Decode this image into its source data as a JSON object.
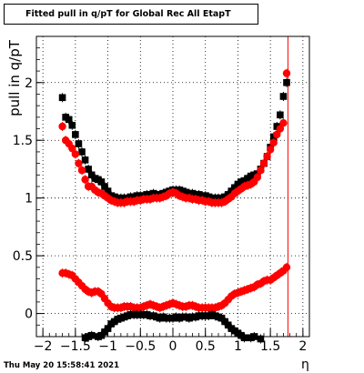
{
  "chart_data": {
    "type": "scatter",
    "title": "Fitted pull in q/pT for Global Rec All EtapT",
    "xlabel": "η",
    "ylabel": "pull in q/pT",
    "xlim": [
      -2.1,
      2.1
    ],
    "ylim": [
      -0.2,
      2.4
    ],
    "xticks": [
      -2,
      -1.5,
      -1,
      -0.5,
      0,
      0.5,
      1,
      1.5,
      2
    ],
    "xtick_labels": [
      "−2",
      "−1.5",
      "−1",
      "−0.5",
      "0",
      "0.5",
      "1",
      "1.5",
      "2"
    ],
    "yticks": [
      0,
      0.5,
      1,
      1.5,
      2
    ],
    "ytick_labels": [
      "0",
      "0.5",
      "1",
      "1.5",
      "2"
    ],
    "grid": true,
    "vertical_line_x": 1.77,
    "series": [
      {
        "color": "#000000",
        "marker": "square",
        "kind": "sigma",
        "points": [
          [
            -1.7,
            1.87
          ],
          [
            -1.65,
            1.7
          ],
          [
            -1.6,
            1.68
          ],
          [
            -1.55,
            1.63
          ],
          [
            -1.5,
            1.55
          ],
          [
            -1.45,
            1.47
          ],
          [
            -1.4,
            1.4
          ],
          [
            -1.35,
            1.33
          ],
          [
            -1.3,
            1.25
          ],
          [
            -1.25,
            1.2
          ],
          [
            -1.2,
            1.17
          ],
          [
            -1.15,
            1.16
          ],
          [
            -1.1,
            1.14
          ],
          [
            -1.05,
            1.1
          ],
          [
            -1.0,
            1.06
          ],
          [
            -0.95,
            1.02
          ],
          [
            -0.9,
            1.01
          ],
          [
            -0.85,
            1.0
          ],
          [
            -0.8,
            1.0
          ],
          [
            -0.75,
            1.0
          ],
          [
            -0.7,
            1.0
          ],
          [
            -0.65,
            1.01
          ],
          [
            -0.6,
            1.01
          ],
          [
            -0.55,
            1.02
          ],
          [
            -0.5,
            1.02
          ],
          [
            -0.45,
            1.02
          ],
          [
            -0.4,
            1.03
          ],
          [
            -0.35,
            1.03
          ],
          [
            -0.3,
            1.04
          ],
          [
            -0.25,
            1.03
          ],
          [
            -0.2,
            1.03
          ],
          [
            -0.15,
            1.04
          ],
          [
            -0.1,
            1.05
          ],
          [
            -0.05,
            1.06
          ],
          [
            0.0,
            1.07
          ],
          [
            0.05,
            1.07
          ],
          [
            0.1,
            1.07
          ],
          [
            0.15,
            1.06
          ],
          [
            0.2,
            1.05
          ],
          [
            0.25,
            1.04
          ],
          [
            0.3,
            1.04
          ],
          [
            0.35,
            1.03
          ],
          [
            0.4,
            1.03
          ],
          [
            0.45,
            1.02
          ],
          [
            0.5,
            1.02
          ],
          [
            0.55,
            1.01
          ],
          [
            0.6,
            1.0
          ],
          [
            0.65,
            1.0
          ],
          [
            0.7,
            1.0
          ],
          [
            0.75,
            1.0
          ],
          [
            0.8,
            1.01
          ],
          [
            0.85,
            1.03
          ],
          [
            0.9,
            1.06
          ],
          [
            0.95,
            1.09
          ],
          [
            1.0,
            1.12
          ],
          [
            1.05,
            1.14
          ],
          [
            1.1,
            1.15
          ],
          [
            1.15,
            1.17
          ],
          [
            1.2,
            1.19
          ],
          [
            1.25,
            1.2
          ],
          [
            1.3,
            1.21
          ],
          [
            1.35,
            1.25
          ],
          [
            1.4,
            1.3
          ],
          [
            1.45,
            1.36
          ],
          [
            1.5,
            1.44
          ],
          [
            1.55,
            1.53
          ],
          [
            1.6,
            1.62
          ],
          [
            1.65,
            1.72
          ],
          [
            1.7,
            1.88
          ],
          [
            1.75,
            2.0
          ]
        ]
      },
      {
        "color": "#ff0000",
        "marker": "circle",
        "kind": "sigma",
        "points": [
          [
            -1.7,
            1.62
          ],
          [
            -1.65,
            1.5
          ],
          [
            -1.6,
            1.47
          ],
          [
            -1.55,
            1.43
          ],
          [
            -1.5,
            1.38
          ],
          [
            -1.45,
            1.3
          ],
          [
            -1.4,
            1.24
          ],
          [
            -1.35,
            1.16
          ],
          [
            -1.3,
            1.1
          ],
          [
            -1.25,
            1.1
          ],
          [
            -1.2,
            1.07
          ],
          [
            -1.15,
            1.05
          ],
          [
            -1.1,
            1.04
          ],
          [
            -1.05,
            1.02
          ],
          [
            -1.0,
            1.0
          ],
          [
            -0.95,
            0.98
          ],
          [
            -0.9,
            0.97
          ],
          [
            -0.85,
            0.96
          ],
          [
            -0.8,
            0.96
          ],
          [
            -0.75,
            0.96
          ],
          [
            -0.7,
            0.97
          ],
          [
            -0.65,
            0.97
          ],
          [
            -0.6,
            0.97
          ],
          [
            -0.55,
            0.98
          ],
          [
            -0.5,
            0.98
          ],
          [
            -0.45,
            0.99
          ],
          [
            -0.4,
            0.99
          ],
          [
            -0.35,
            0.99
          ],
          [
            -0.3,
            1.0
          ],
          [
            -0.25,
            1.0
          ],
          [
            -0.2,
            1.0
          ],
          [
            -0.15,
            1.01
          ],
          [
            -0.1,
            1.02
          ],
          [
            -0.05,
            1.04
          ],
          [
            0.0,
            1.05
          ],
          [
            0.05,
            1.04
          ],
          [
            0.1,
            1.02
          ],
          [
            0.15,
            1.01
          ],
          [
            0.2,
            1.0
          ],
          [
            0.25,
            1.0
          ],
          [
            0.3,
            0.99
          ],
          [
            0.35,
            0.99
          ],
          [
            0.4,
            0.98
          ],
          [
            0.45,
            0.98
          ],
          [
            0.5,
            0.97
          ],
          [
            0.55,
            0.97
          ],
          [
            0.6,
            0.96
          ],
          [
            0.65,
            0.96
          ],
          [
            0.7,
            0.96
          ],
          [
            0.75,
            0.96
          ],
          [
            0.8,
            0.97
          ],
          [
            0.85,
            0.99
          ],
          [
            0.9,
            1.01
          ],
          [
            0.95,
            1.04
          ],
          [
            1.0,
            1.06
          ],
          [
            1.05,
            1.08
          ],
          [
            1.1,
            1.1
          ],
          [
            1.15,
            1.11
          ],
          [
            1.2,
            1.12
          ],
          [
            1.25,
            1.14
          ],
          [
            1.3,
            1.18
          ],
          [
            1.35,
            1.24
          ],
          [
            1.4,
            1.3
          ],
          [
            1.45,
            1.36
          ],
          [
            1.5,
            1.42
          ],
          [
            1.55,
            1.48
          ],
          [
            1.6,
            1.55
          ],
          [
            1.65,
            1.6
          ],
          [
            1.7,
            1.65
          ],
          [
            1.75,
            2.08
          ]
        ]
      },
      {
        "color": "#ff0000",
        "marker": "circle",
        "kind": "mean",
        "points": [
          [
            -1.7,
            0.35
          ],
          [
            -1.65,
            0.35
          ],
          [
            -1.6,
            0.34
          ],
          [
            -1.55,
            0.33
          ],
          [
            -1.5,
            0.3
          ],
          [
            -1.45,
            0.27
          ],
          [
            -1.4,
            0.24
          ],
          [
            -1.35,
            0.21
          ],
          [
            -1.3,
            0.19
          ],
          [
            -1.25,
            0.18
          ],
          [
            -1.2,
            0.19
          ],
          [
            -1.15,
            0.19
          ],
          [
            -1.1,
            0.17
          ],
          [
            -1.05,
            0.13
          ],
          [
            -1.0,
            0.09
          ],
          [
            -0.95,
            0.06
          ],
          [
            -0.9,
            0.05
          ],
          [
            -0.85,
            0.05
          ],
          [
            -0.8,
            0.05
          ],
          [
            -0.75,
            0.06
          ],
          [
            -0.7,
            0.06
          ],
          [
            -0.65,
            0.06
          ],
          [
            -0.6,
            0.05
          ],
          [
            -0.55,
            0.05
          ],
          [
            -0.5,
            0.05
          ],
          [
            -0.45,
            0.06
          ],
          [
            -0.4,
            0.07
          ],
          [
            -0.35,
            0.08
          ],
          [
            -0.3,
            0.07
          ],
          [
            -0.25,
            0.06
          ],
          [
            -0.2,
            0.05
          ],
          [
            -0.15,
            0.06
          ],
          [
            -0.1,
            0.07
          ],
          [
            -0.05,
            0.08
          ],
          [
            0.0,
            0.09
          ],
          [
            0.05,
            0.08
          ],
          [
            0.1,
            0.07
          ],
          [
            0.15,
            0.06
          ],
          [
            0.2,
            0.06
          ],
          [
            0.25,
            0.07
          ],
          [
            0.3,
            0.07
          ],
          [
            0.35,
            0.06
          ],
          [
            0.4,
            0.05
          ],
          [
            0.45,
            0.05
          ],
          [
            0.5,
            0.05
          ],
          [
            0.55,
            0.05
          ],
          [
            0.6,
            0.05
          ],
          [
            0.65,
            0.05
          ],
          [
            0.7,
            0.06
          ],
          [
            0.75,
            0.07
          ],
          [
            0.8,
            0.09
          ],
          [
            0.85,
            0.12
          ],
          [
            0.9,
            0.15
          ],
          [
            0.95,
            0.17
          ],
          [
            1.0,
            0.18
          ],
          [
            1.05,
            0.19
          ],
          [
            1.1,
            0.2
          ],
          [
            1.15,
            0.21
          ],
          [
            1.2,
            0.22
          ],
          [
            1.25,
            0.23
          ],
          [
            1.3,
            0.25
          ],
          [
            1.35,
            0.26
          ],
          [
            1.4,
            0.28
          ],
          [
            1.45,
            0.29
          ],
          [
            1.5,
            0.29
          ],
          [
            1.55,
            0.31
          ],
          [
            1.6,
            0.33
          ],
          [
            1.65,
            0.35
          ],
          [
            1.7,
            0.37
          ],
          [
            1.75,
            0.4
          ]
        ]
      },
      {
        "color": "#000000",
        "marker": "square",
        "kind": "mean",
        "points": [
          [
            -1.35,
            -0.21
          ],
          [
            -1.3,
            -0.2
          ],
          [
            -1.25,
            -0.19
          ],
          [
            -1.15,
            -0.2
          ],
          [
            -1.1,
            -0.19
          ],
          [
            -1.05,
            -0.16
          ],
          [
            -1.0,
            -0.13
          ],
          [
            -0.95,
            -0.09
          ],
          [
            -0.9,
            -0.07
          ],
          [
            -0.85,
            -0.05
          ],
          [
            -0.8,
            -0.04
          ],
          [
            -0.75,
            -0.03
          ],
          [
            -0.7,
            -0.02
          ],
          [
            -0.65,
            -0.01
          ],
          [
            -0.6,
            -0.01
          ],
          [
            -0.55,
            -0.01
          ],
          [
            -0.5,
            -0.01
          ],
          [
            -0.45,
            -0.01
          ],
          [
            -0.4,
            -0.01
          ],
          [
            -0.35,
            -0.02
          ],
          [
            -0.3,
            -0.02
          ],
          [
            -0.25,
            -0.03
          ],
          [
            -0.2,
            -0.04
          ],
          [
            -0.15,
            -0.03
          ],
          [
            -0.1,
            -0.04
          ],
          [
            -0.05,
            -0.04
          ],
          [
            0.0,
            -0.04
          ],
          [
            0.05,
            -0.03
          ],
          [
            0.1,
            -0.04
          ],
          [
            0.15,
            -0.03
          ],
          [
            0.2,
            -0.03
          ],
          [
            0.25,
            -0.04
          ],
          [
            0.3,
            -0.03
          ],
          [
            0.35,
            -0.03
          ],
          [
            0.4,
            -0.02
          ],
          [
            0.45,
            -0.02
          ],
          [
            0.5,
            -0.02
          ],
          [
            0.55,
            -0.02
          ],
          [
            0.6,
            -0.01
          ],
          [
            0.65,
            -0.02
          ],
          [
            0.7,
            -0.03
          ],
          [
            0.75,
            -0.04
          ],
          [
            0.8,
            -0.07
          ],
          [
            0.85,
            -0.1
          ],
          [
            0.9,
            -0.13
          ],
          [
            0.95,
            -0.15
          ],
          [
            1.0,
            -0.17
          ],
          [
            1.05,
            -0.19
          ],
          [
            1.1,
            -0.21
          ],
          [
            1.2,
            -0.21
          ],
          [
            1.25,
            -0.2
          ],
          [
            1.35,
            -0.22
          ]
        ]
      }
    ]
  },
  "footer": {
    "timestamp": "Thu May 20 15:58:41 2021"
  }
}
